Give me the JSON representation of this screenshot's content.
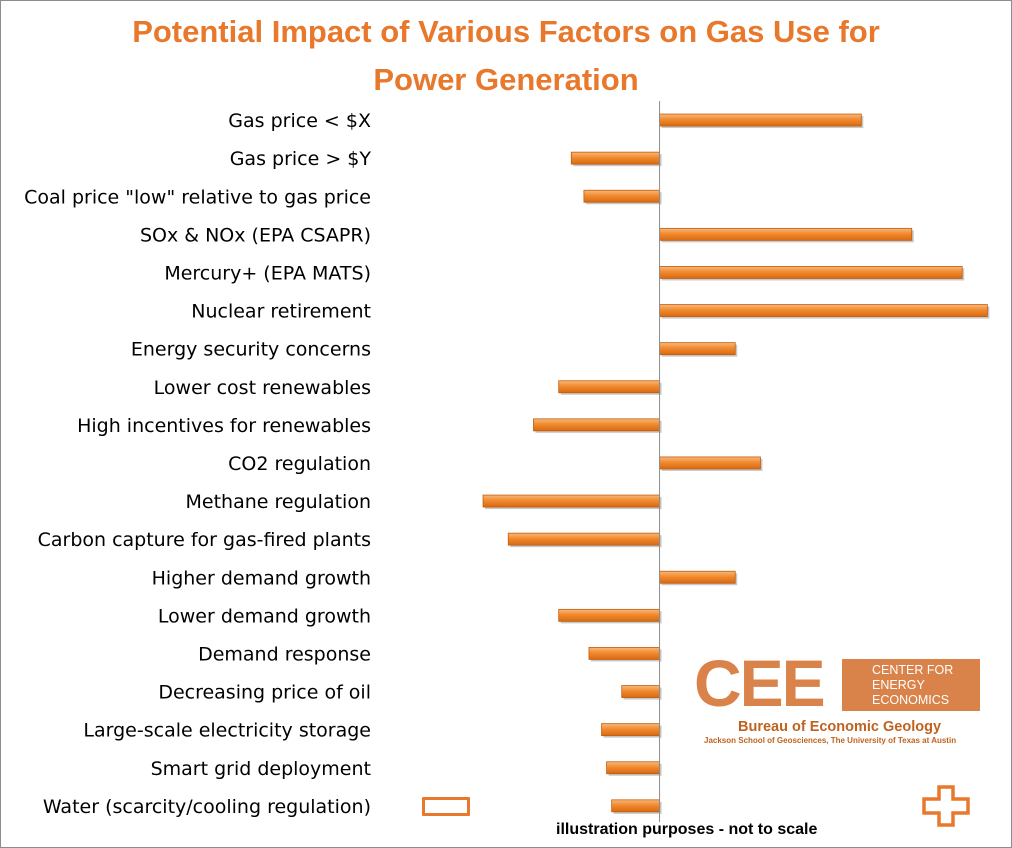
{
  "chart_data": {
    "type": "bar",
    "orientation": "horizontal",
    "title": "Potential Impact of Various Factors on Gas Use for\nPower Generation",
    "categories": [
      "Gas price < $X",
      "Gas price > $Y",
      "Coal price \"low\" relative to gas price",
      "SOx & NOx (EPA CSAPR)",
      "Mercury+ (EPA MATS)",
      "Nuclear retirement",
      "Energy security concerns",
      "Lower cost renewables",
      "High incentives for renewables",
      "CO2 regulation",
      "Methane regulation",
      "Carbon capture for gas-fired plants",
      "Higher demand growth",
      "Lower demand growth",
      "Demand response",
      "Decreasing price of oil",
      "Large-scale electricity storage",
      "Smart grid deployment",
      "Water (scarcity/cooling regulation)"
    ],
    "values": [
      8,
      -3.5,
      -3,
      10,
      12,
      13,
      3,
      -4,
      -5,
      4,
      -7,
      -6,
      3,
      -4,
      -2.8,
      -1.5,
      -2.3,
      -2.1,
      -1.9
    ],
    "xlim": [
      -9.5,
      13.5
    ],
    "grid": false,
    "legend": "none",
    "bar_color": "#f28a2e",
    "axis_color": "#8c8c8c"
  },
  "footnote": "illustration purposes - not to scale",
  "legend_icons": {
    "negative": "minus-icon",
    "positive": "plus-icon",
    "color": "#e8782b"
  },
  "logo": {
    "letters": "CEE",
    "box_line1": "CENTER FOR",
    "box_line2": "ENERGY",
    "box_line3": "ECONOMICS",
    "org": "Bureau of Economic Geology",
    "affiliation": "Jackson School of Geosciences, The University of Texas at Austin"
  }
}
